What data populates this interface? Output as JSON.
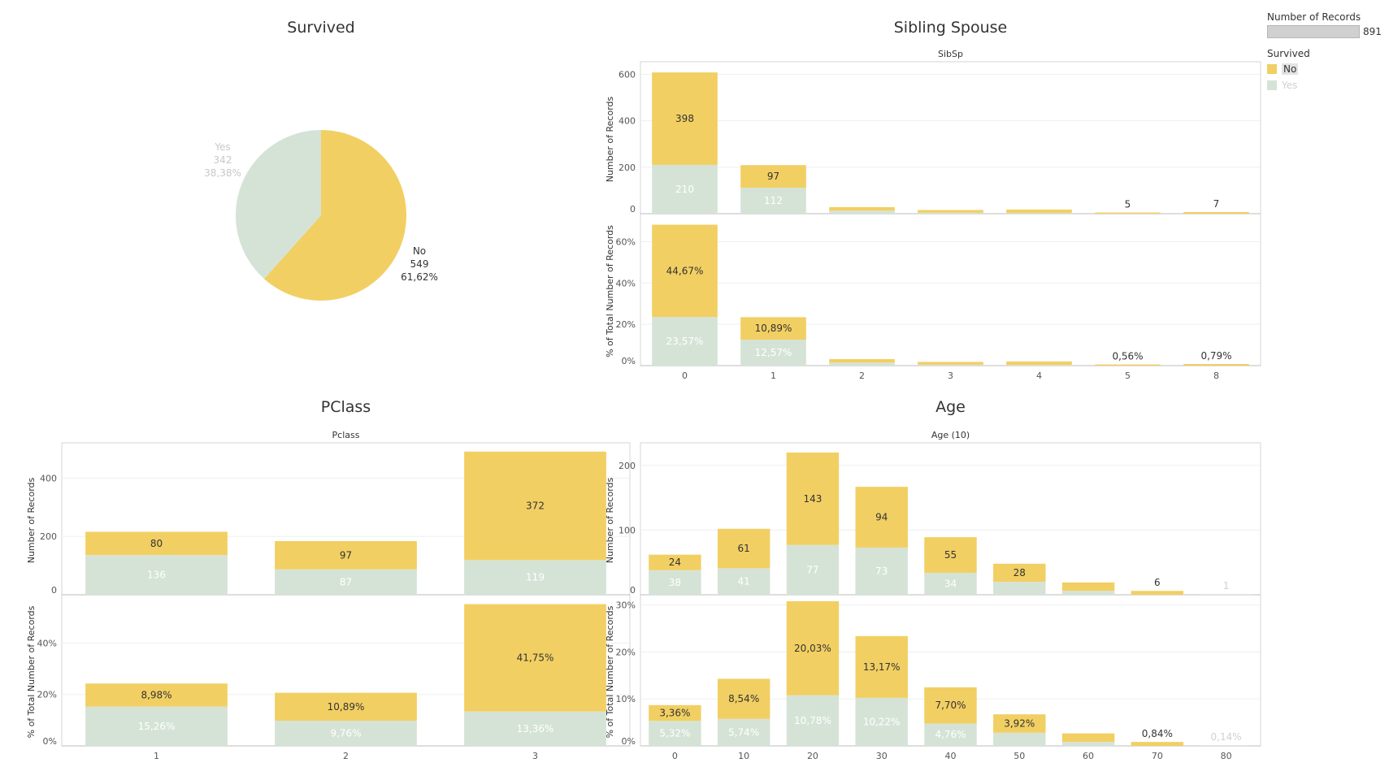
{
  "colors": {
    "no": "#f2cf63",
    "yes": "#d5e3d7",
    "yes_text": "#ffffff",
    "no_text": "#333333"
  },
  "legend": {
    "size_title": "Number of Records",
    "size_value": "891",
    "color_title": "Survived",
    "items": [
      {
        "label": "No",
        "color": "#f2cf63"
      },
      {
        "label": "Yes",
        "color": "#d5e3d7"
      }
    ]
  },
  "chart_data": [
    {
      "type": "pie",
      "title": "Survived",
      "slices": [
        {
          "label": "No",
          "value": 549,
          "percent": "61,62%"
        },
        {
          "label": "Yes",
          "value": 342,
          "percent": "38,38%"
        }
      ]
    },
    {
      "type": "bar",
      "title": "Sibling Spouse",
      "subtitle": "SibSp",
      "stacked": true,
      "categories": [
        "0",
        "1",
        "2",
        "3",
        "4",
        "5",
        "8"
      ],
      "series": [
        {
          "name": "Yes",
          "values": [
            210,
            112,
            13,
            4,
            3,
            0,
            0
          ]
        },
        {
          "name": "No",
          "values": [
            398,
            97,
            15,
            12,
            15,
            5,
            7
          ]
        }
      ],
      "count_labels": {
        "No": [
          "398",
          "97",
          "",
          "",
          "",
          "5",
          "7"
        ],
        "Yes": [
          "210",
          "112",
          "",
          "",
          "",
          "",
          ""
        ]
      },
      "pct_labels": {
        "No": [
          "44,67%",
          "10,89%",
          "",
          "",
          "",
          "0,56%",
          "0,79%"
        ],
        "Yes": [
          "23,57%",
          "12,57%",
          "",
          "",
          "",
          "",
          ""
        ]
      },
      "ylabel_top": "Number of Records",
      "ylabel_bottom": "% of Total Number of Records",
      "yticks_top": [
        "0",
        "200",
        "400",
        "600"
      ],
      "yticks_bottom": [
        "0%",
        "20%",
        "40%",
        "60%"
      ],
      "ylim_top": [
        0,
        640
      ],
      "ylim_bottom": [
        0,
        72
      ]
    },
    {
      "type": "bar",
      "title": "PClass",
      "subtitle": "Pclass",
      "stacked": true,
      "categories": [
        "1",
        "2",
        "3"
      ],
      "series": [
        {
          "name": "Yes",
          "values": [
            136,
            87,
            119
          ]
        },
        {
          "name": "No",
          "values": [
            80,
            97,
            372
          ]
        }
      ],
      "count_labels": {
        "No": [
          "80",
          "97",
          "372"
        ],
        "Yes": [
          "136",
          "87",
          "119"
        ]
      },
      "pct_labels": {
        "No": [
          "8,98%",
          "10,89%",
          "41,75%"
        ],
        "Yes": [
          "15,26%",
          "9,76%",
          "13,36%"
        ]
      },
      "ylabel_top": "Number of Records",
      "ylabel_bottom": "% of Total Number of Records",
      "yticks_top": [
        "0",
        "200",
        "400"
      ],
      "yticks_bottom": [
        "0%",
        "20%",
        "40%"
      ],
      "ylim_top": [
        0,
        510
      ],
      "ylim_bottom": [
        0,
        57.5
      ]
    },
    {
      "type": "bar",
      "title": "Age",
      "subtitle": "Age (10)",
      "stacked": true,
      "categories": [
        "0",
        "10",
        "20",
        "30",
        "40",
        "50",
        "60",
        "70",
        "80"
      ],
      "series": [
        {
          "name": "Yes",
          "values": [
            38,
            41,
            77,
            73,
            34,
            20,
            6,
            0,
            1
          ]
        },
        {
          "name": "No",
          "values": [
            24,
            61,
            143,
            94,
            55,
            28,
            13,
            6,
            0
          ]
        }
      ],
      "count_labels": {
        "No": [
          "24",
          "61",
          "143",
          "94",
          "55",
          "28",
          "",
          "6",
          ""
        ],
        "Yes": [
          "38",
          "41",
          "77",
          "73",
          "34",
          "",
          "",
          "",
          "1"
        ]
      },
      "pct_labels": {
        "No": [
          "3,36%",
          "8,54%",
          "20,03%",
          "13,17%",
          "7,70%",
          "3,92%",
          "",
          "0,84%",
          ""
        ],
        "Yes": [
          "5,32%",
          "5,74%",
          "10,78%",
          "10,22%",
          "4,76%",
          "",
          "",
          "",
          "0,14%"
        ]
      },
      "ylabel_top": "Number of Records",
      "ylabel_bottom": "% of Total Number of Records",
      "yticks_top": [
        "0",
        "100",
        "200"
      ],
      "yticks_bottom": [
        "0%",
        "10%",
        "20%",
        "30%"
      ],
      "ylim_top": [
        0,
        230
      ],
      "ylim_bottom": [
        0,
        31.5
      ]
    }
  ]
}
